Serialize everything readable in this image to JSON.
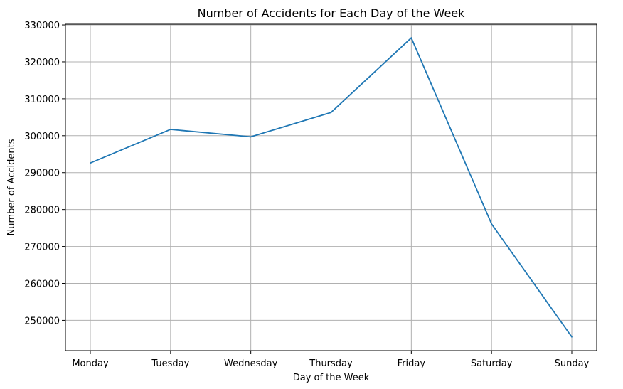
{
  "chart_data": {
    "type": "line",
    "title": "Number of Accidents for Each Day of the Week",
    "xlabel": "Day of the Week",
    "ylabel": "Number of Accidents",
    "categories": [
      "Monday",
      "Tuesday",
      "Wednesday",
      "Thursday",
      "Friday",
      "Saturday",
      "Sunday"
    ],
    "series": [
      {
        "values": [
          292600,
          301700,
          299700,
          306300,
          326500,
          276100,
          245500
        ]
      }
    ],
    "ylim": [
      241800,
      330200
    ],
    "yticks": [
      250000,
      260000,
      270000,
      280000,
      290000,
      300000,
      310000,
      320000,
      330000
    ],
    "ytick_labels": [
      "250000",
      "260000",
      "270000",
      "280000",
      "290000",
      "300000",
      "310000",
      "320000",
      "330000"
    ],
    "grid": true,
    "line_color": "#1f77b4",
    "grid_color": "#b0b0b0"
  }
}
